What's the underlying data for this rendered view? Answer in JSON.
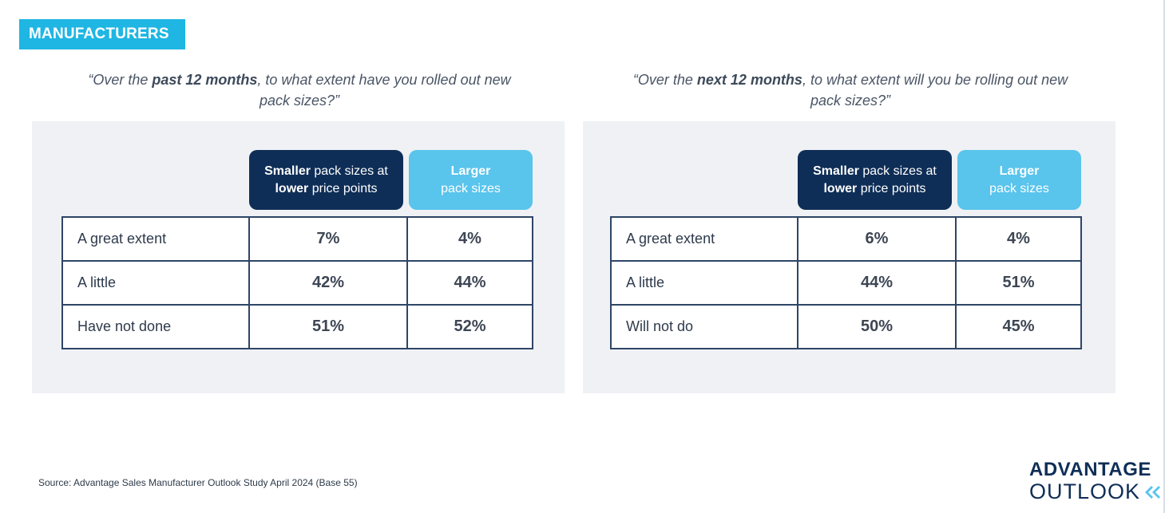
{
  "section_tag": "MANUFACTURERS",
  "left": {
    "question_pre": "“Over the ",
    "question_bold": "past 12 months",
    "question_post": ", to what extent have you rolled out new pack sizes?”",
    "col1_bold_a": "Smaller",
    "col1_a": " pack sizes at",
    "col1_bold_b": "lower",
    "col1_b": " price points",
    "col2_bold": "Larger",
    "col2_text": "pack sizes",
    "rows": [
      {
        "label": "A great extent",
        "smaller": "7%",
        "larger": "4%"
      },
      {
        "label": "A little",
        "smaller": "42%",
        "larger": "44%"
      },
      {
        "label": "Have not done",
        "smaller": "51%",
        "larger": "52%"
      }
    ]
  },
  "right": {
    "question_pre": "“Over the ",
    "question_bold": "next 12 months",
    "question_post": ", to what extent will you be rolling out new pack sizes?”",
    "col1_bold_a": "Smaller",
    "col1_a": " pack sizes at",
    "col1_bold_b": "lower",
    "col1_b": " price points",
    "col2_bold": "Larger",
    "col2_text": "pack sizes",
    "rows": [
      {
        "label": "A great extent",
        "smaller": "6%",
        "larger": "4%"
      },
      {
        "label": "A little",
        "smaller": "44%",
        "larger": "51%"
      },
      {
        "label": "Will not do",
        "smaller": "50%",
        "larger": "45%"
      }
    ]
  },
  "source": "Source: Advantage Sales Manufacturer Outlook Study April 2024 (Base 55)",
  "logo": {
    "line1": "ADVANTAGE",
    "line2": "OUTLOOK"
  },
  "colors": {
    "tag": "#1fb6e3",
    "dark_header": "#0f2e57",
    "light_header": "#59c4ec",
    "panel": "#eff1f4"
  }
}
